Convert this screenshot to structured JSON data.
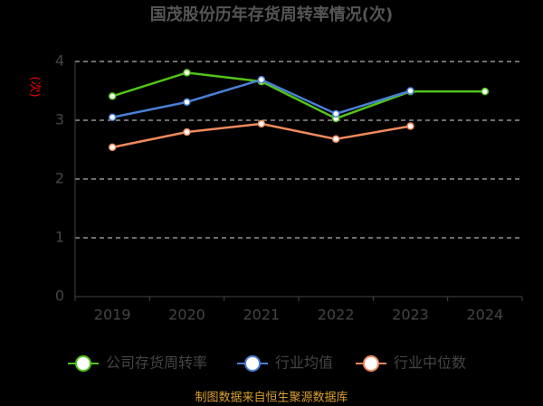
{
  "chart_data": {
    "type": "line",
    "title": "国茂股份历年存货周转率情况(次)",
    "y_label": "(次)",
    "categories": [
      "2019",
      "2020",
      "2021",
      "2022",
      "2023",
      "2024"
    ],
    "series": [
      {
        "name": "公司存货周转率",
        "color": "#52c41a",
        "values": [
          3.41,
          3.81,
          3.66,
          3.03,
          3.49,
          3.49
        ]
      },
      {
        "name": "行业均值",
        "color": "#4a7fd6",
        "values": [
          3.05,
          3.31,
          3.69,
          3.11,
          3.5,
          null
        ]
      },
      {
        "name": "行业中位数",
        "color": "#f08a5d",
        "values": [
          2.54,
          2.8,
          2.94,
          2.68,
          2.9,
          null
        ]
      }
    ],
    "ylim": [
      0,
      4
    ],
    "yticks": [
      0,
      1,
      2,
      3,
      4
    ],
    "grid": true,
    "source": "制图数据来自恒生聚源数据库"
  }
}
